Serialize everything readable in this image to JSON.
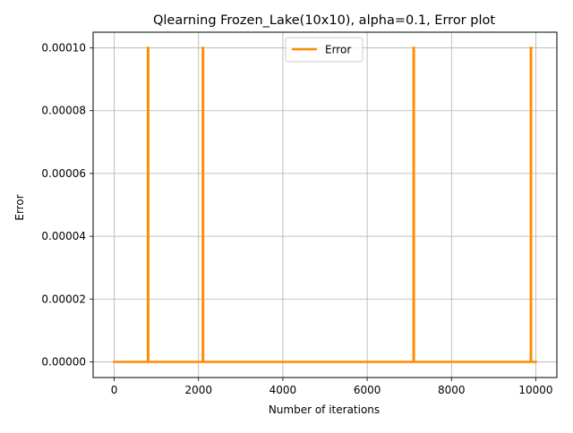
{
  "chart_data": {
    "type": "line",
    "title": "Qlearning Frozen_Lake(10x10),  alpha=0.1, Error plot",
    "xlabel": "Number of iterations",
    "ylabel": "Error",
    "xlim": [
      -500,
      10500
    ],
    "ylim": [
      -5e-06,
      0.000105
    ],
    "xticks": [
      0,
      2000,
      4000,
      6000,
      8000,
      10000
    ],
    "xtick_labels": [
      "0",
      "2000",
      "4000",
      "6000",
      "8000",
      "10000"
    ],
    "yticks": [
      0,
      2e-05,
      4e-05,
      6e-05,
      8e-05,
      0.0001
    ],
    "ytick_labels": [
      "0.00000",
      "0.00002",
      "0.00004",
      "0.00006",
      "0.00008",
      "0.00010"
    ],
    "grid": true,
    "legend_position": "top-center",
    "series": [
      {
        "name": "Error",
        "color": "#ff8c00",
        "x": [
          0,
          800,
          800,
          810,
          810,
          2100,
          2100,
          2110,
          2110,
          7100,
          7100,
          7110,
          7110,
          9880,
          9880,
          9890,
          9890,
          10000
        ],
        "y": [
          0,
          0,
          0.0001,
          0.0001,
          0,
          0,
          0.0001,
          0.0001,
          0,
          0,
          0.0001,
          0.0001,
          0,
          0,
          0.0001,
          0.0001,
          0,
          0
        ]
      }
    ]
  }
}
